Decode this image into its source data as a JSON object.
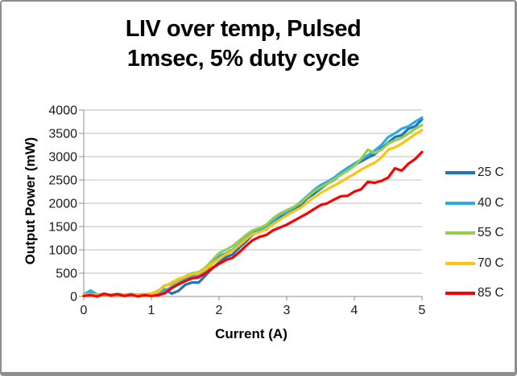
{
  "frame": {
    "background": "#ffffff",
    "border_color": "#8f8f8f"
  },
  "colors": {
    "gridline": "#bfbfbf",
    "axis": "#8c8c8c",
    "tick_text": "#1a1a1a"
  },
  "chart_data": {
    "type": "line",
    "title": "LIV over temp, Pulsed 1msec, 5% duty cycle",
    "title_lines": [
      "LIV over temp, Pulsed",
      "1msec, 5% duty cycle"
    ],
    "xlabel": "Current (A)",
    "ylabel": "Output Power (mW)",
    "xlim": [
      0,
      5
    ],
    "ylim": [
      0,
      4000
    ],
    "x_ticks": [
      0,
      1,
      2,
      3,
      4,
      5
    ],
    "y_ticks": [
      0,
      500,
      1000,
      1500,
      2000,
      2500,
      3000,
      3500,
      4000
    ],
    "grid": "horizontal",
    "legend_position": "right",
    "x": [
      0,
      0.1,
      0.2,
      0.3,
      0.4,
      0.5,
      0.6,
      0.7,
      0.8,
      0.9,
      1,
      1.1,
      1.2,
      1.3,
      1.4,
      1.5,
      1.6,
      1.7,
      1.8,
      1.9,
      2,
      2.1,
      2.2,
      2.3,
      2.4,
      2.5,
      2.6,
      2.7,
      2.8,
      2.9,
      3,
      3.1,
      3.2,
      3.3,
      3.4,
      3.5,
      3.6,
      3.7,
      3.8,
      3.9,
      4,
      4.1,
      4.2,
      4.3,
      4.4,
      4.5,
      4.6,
      4.7,
      4.8,
      4.9,
      5
    ],
    "series": [
      {
        "name": "25 C",
        "color": "#1f74be",
        "values": [
          30,
          60,
          30,
          40,
          30,
          40,
          30,
          40,
          30,
          40,
          50,
          70,
          150,
          60,
          120,
          250,
          300,
          300,
          450,
          600,
          730,
          840,
          900,
          1050,
          1180,
          1330,
          1400,
          1440,
          1580,
          1700,
          1780,
          1850,
          1950,
          2100,
          2200,
          2310,
          2420,
          2500,
          2620,
          2700,
          2820,
          2900,
          2980,
          3050,
          3180,
          3300,
          3420,
          3460,
          3600,
          3650,
          3800
        ]
      },
      {
        "name": "40 C",
        "color": "#2cace3",
        "values": [
          40,
          130,
          40,
          50,
          40,
          50,
          40,
          50,
          40,
          50,
          50,
          80,
          130,
          200,
          280,
          380,
          430,
          440,
          550,
          700,
          870,
          920,
          1000,
          1120,
          1250,
          1370,
          1440,
          1490,
          1620,
          1750,
          1800,
          1900,
          2020,
          2150,
          2280,
          2390,
          2460,
          2550,
          2660,
          2760,
          2850,
          2940,
          3030,
          3130,
          3250,
          3420,
          3500,
          3600,
          3650,
          3750,
          3840
        ]
      },
      {
        "name": "55 C",
        "color": "#95ce4d",
        "values": [
          40,
          50,
          40,
          50,
          40,
          50,
          40,
          50,
          40,
          50,
          60,
          120,
          240,
          260,
          340,
          430,
          500,
          520,
          620,
          780,
          930,
          1000,
          1080,
          1200,
          1320,
          1420,
          1470,
          1540,
          1680,
          1780,
          1850,
          1920,
          2000,
          2130,
          2250,
          2340,
          2420,
          2510,
          2610,
          2700,
          2800,
          2950,
          3150,
          3080,
          3150,
          3280,
          3350,
          3400,
          3500,
          3600,
          3680
        ]
      },
      {
        "name": "70 C",
        "color": "#fec211",
        "values": [
          30,
          40,
          20,
          50,
          10,
          40,
          30,
          40,
          20,
          40,
          60,
          100,
          220,
          300,
          380,
          420,
          480,
          500,
          580,
          700,
          810,
          900,
          980,
          1100,
          1230,
          1340,
          1380,
          1450,
          1550,
          1650,
          1740,
          1820,
          1900,
          2010,
          2120,
          2220,
          2300,
          2380,
          2460,
          2550,
          2630,
          2720,
          2800,
          2870,
          2980,
          3150,
          3200,
          3280,
          3380,
          3480,
          3570
        ]
      },
      {
        "name": "85 C",
        "color": "#fe0000",
        "values": [
          10,
          30,
          0,
          60,
          20,
          50,
          10,
          40,
          0,
          30,
          10,
          30,
          70,
          180,
          260,
          330,
          390,
          410,
          500,
          610,
          700,
          780,
          830,
          950,
          1090,
          1210,
          1280,
          1320,
          1420,
          1480,
          1540,
          1620,
          1700,
          1780,
          1870,
          1960,
          2000,
          2080,
          2150,
          2160,
          2250,
          2300,
          2460,
          2440,
          2480,
          2550,
          2750,
          2700,
          2850,
          2950,
          3100
        ]
      }
    ]
  }
}
